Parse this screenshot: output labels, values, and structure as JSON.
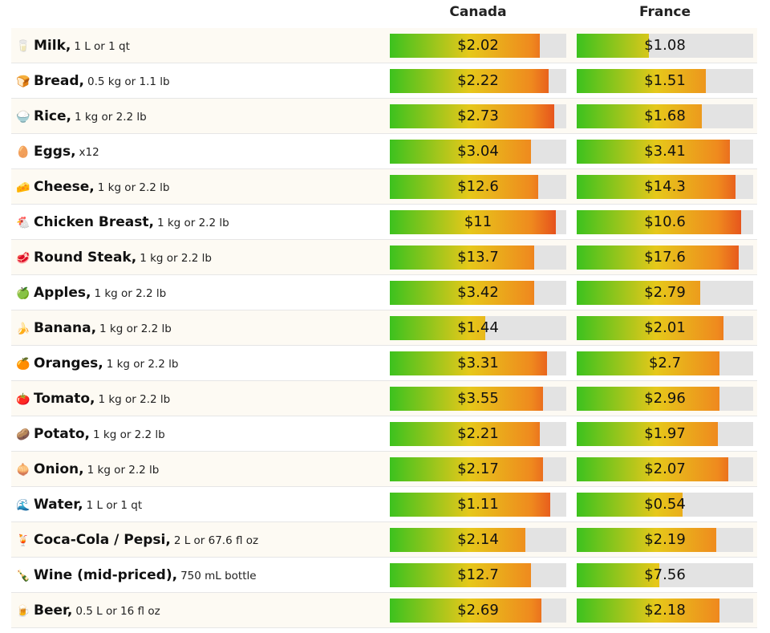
{
  "chart_data": {
    "type": "bar",
    "columns": [
      "Canada",
      "France"
    ],
    "scale_max": 100,
    "gradient": [
      "#3cc21e",
      "#e6c81a",
      "#ef8a1e",
      "#e23a1c"
    ],
    "track_color": "#e3e3e3",
    "rows": [
      {
        "icon": "milk-glass-icon",
        "glyph": "🥛",
        "name": "Milk,",
        "unit": "1 L or 1 qt",
        "values": [
          "$2.02",
          "$1.08"
        ],
        "fill": [
          85,
          41
        ]
      },
      {
        "icon": "bread-icon",
        "glyph": "🍞",
        "name": "Bread,",
        "unit": "0.5 kg or 1.1 lb",
        "values": [
          "$2.22",
          "$1.51"
        ],
        "fill": [
          90,
          73
        ]
      },
      {
        "icon": "rice-icon",
        "glyph": "🍚",
        "name": "Rice,",
        "unit": "1 kg or 2.2 lb",
        "values": [
          "$2.73",
          "$1.68"
        ],
        "fill": [
          93,
          71
        ]
      },
      {
        "icon": "egg-icon",
        "glyph": "🥚",
        "name": "Eggs,",
        "unit": "x12",
        "values": [
          "$3.04",
          "$3.41"
        ],
        "fill": [
          80,
          87
        ]
      },
      {
        "icon": "cheese-icon",
        "glyph": "🧀",
        "name": "Cheese,",
        "unit": "1 kg or 2.2 lb",
        "values": [
          "$12.6",
          "$14.3"
        ],
        "fill": [
          84,
          90
        ]
      },
      {
        "icon": "chicken-icon",
        "glyph": "🐔",
        "name": "Chicken Breast,",
        "unit": "1 kg or 2.2 lb",
        "values": [
          "$11",
          "$10.6"
        ],
        "fill": [
          94,
          93
        ]
      },
      {
        "icon": "steak-icon",
        "glyph": "🥩",
        "name": "Round Steak,",
        "unit": "1 kg or 2.2 lb",
        "values": [
          "$13.7",
          "$17.6"
        ],
        "fill": [
          82,
          92
        ]
      },
      {
        "icon": "apple-icon",
        "glyph": "🍏",
        "name": "Apples,",
        "unit": "1 kg or 2.2 lb",
        "values": [
          "$3.42",
          "$2.79"
        ],
        "fill": [
          82,
          70
        ]
      },
      {
        "icon": "banana-icon",
        "glyph": "🍌",
        "name": "Banana,",
        "unit": "1 kg or 2.2 lb",
        "values": [
          "$1.44",
          "$2.01"
        ],
        "fill": [
          54,
          83
        ]
      },
      {
        "icon": "orange-icon",
        "glyph": "🍊",
        "name": "Oranges,",
        "unit": "1 kg or 2.2 lb",
        "values": [
          "$3.31",
          "$2.7"
        ],
        "fill": [
          89,
          81
        ]
      },
      {
        "icon": "tomato-icon",
        "glyph": "🍅",
        "name": "Tomato,",
        "unit": "1 kg or 2.2 lb",
        "values": [
          "$3.55",
          "$2.96"
        ],
        "fill": [
          87,
          81
        ]
      },
      {
        "icon": "potato-icon",
        "glyph": "🥔",
        "name": "Potato,",
        "unit": "1 kg or 2.2 lb",
        "values": [
          "$2.21",
          "$1.97"
        ],
        "fill": [
          85,
          80
        ]
      },
      {
        "icon": "onion-icon",
        "glyph": "🧅",
        "name": "Onion,",
        "unit": "1 kg or 2.2 lb",
        "values": [
          "$2.17",
          "$2.07"
        ],
        "fill": [
          87,
          86
        ]
      },
      {
        "icon": "water-wave-icon",
        "glyph": "🌊",
        "name": "Water,",
        "unit": "1 L or 1 qt",
        "values": [
          "$1.11",
          "$0.54"
        ],
        "fill": [
          91,
          60
        ]
      },
      {
        "icon": "soda-icon",
        "glyph": "🍹",
        "name": "Coca-Cola / Pepsi,",
        "unit": "2 L or 67.6 fl oz",
        "values": [
          "$2.14",
          "$2.19"
        ],
        "fill": [
          77,
          79
        ]
      },
      {
        "icon": "wine-bottle-icon",
        "glyph": "🍾",
        "name": "Wine (mid-priced),",
        "unit": "750 mL bottle",
        "values": [
          "$12.7",
          "$7.56"
        ],
        "fill": [
          80,
          47
        ]
      },
      {
        "icon": "beer-mug-icon",
        "glyph": "🍺",
        "name": "Beer,",
        "unit": "0.5 L or 16 fl oz",
        "values": [
          "$2.69",
          "$2.18"
        ],
        "fill": [
          86,
          81
        ]
      }
    ]
  }
}
